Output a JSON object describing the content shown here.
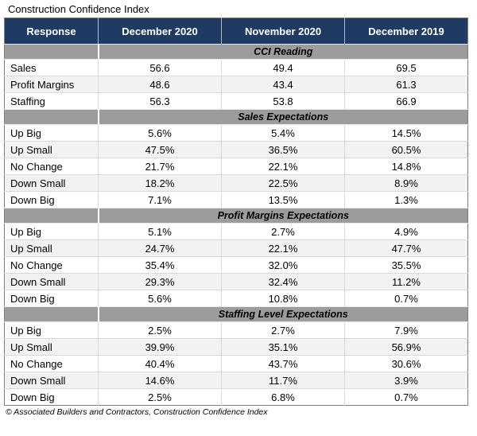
{
  "title": "Construction Confidence Index",
  "footer": "© Associated Builders and Contractors, Construction Confidence Index",
  "colors": {
    "header_bg": "#1f3a63",
    "section_bg": "#9c9c9c",
    "stripe_bg": "#f2f2f2",
    "grid": "#d9d9d9"
  },
  "chart_data": {
    "type": "table",
    "title": "Construction Confidence Index",
    "columns": [
      "Response",
      "December 2020",
      "November 2020",
      "December 2019"
    ],
    "sections": [
      {
        "label": "CCI Reading",
        "rows": [
          {
            "response": "Sales",
            "values": [
              "56.6",
              "49.4",
              "69.5"
            ]
          },
          {
            "response": "Profit Margins",
            "values": [
              "48.6",
              "43.4",
              "61.3"
            ]
          },
          {
            "response": "Staffing",
            "values": [
              "56.3",
              "53.8",
              "66.9"
            ]
          }
        ]
      },
      {
        "label": "Sales Expectations",
        "rows": [
          {
            "response": "Up Big",
            "values": [
              "5.6%",
              "5.4%",
              "14.5%"
            ]
          },
          {
            "response": "Up Small",
            "values": [
              "47.5%",
              "36.5%",
              "60.5%"
            ]
          },
          {
            "response": "No Change",
            "values": [
              "21.7%",
              "22.1%",
              "14.8%"
            ]
          },
          {
            "response": "Down Small",
            "values": [
              "18.2%",
              "22.5%",
              "8.9%"
            ]
          },
          {
            "response": "Down Big",
            "values": [
              "7.1%",
              "13.5%",
              "1.3%"
            ]
          }
        ]
      },
      {
        "label": "Profit Margins Expectations",
        "rows": [
          {
            "response": "Up Big",
            "values": [
              "5.1%",
              "2.7%",
              "4.9%"
            ]
          },
          {
            "response": "Up Small",
            "values": [
              "24.7%",
              "22.1%",
              "47.7%"
            ]
          },
          {
            "response": "No Change",
            "values": [
              "35.4%",
              "32.0%",
              "35.5%"
            ]
          },
          {
            "response": "Down Small",
            "values": [
              "29.3%",
              "32.4%",
              "11.2%"
            ]
          },
          {
            "response": "Down Big",
            "values": [
              "5.6%",
              "10.8%",
              "0.7%"
            ]
          }
        ]
      },
      {
        "label": "Staffing Level Expectations",
        "rows": [
          {
            "response": "Up Big",
            "values": [
              "2.5%",
              "2.7%",
              "7.9%"
            ]
          },
          {
            "response": "Up Small",
            "values": [
              "39.9%",
              "35.1%",
              "56.9%"
            ]
          },
          {
            "response": "No Change",
            "values": [
              "40.4%",
              "43.7%",
              "30.6%"
            ]
          },
          {
            "response": "Down Small",
            "values": [
              "14.6%",
              "11.7%",
              "3.9%"
            ]
          },
          {
            "response": "Down Big",
            "values": [
              "2.5%",
              "6.8%",
              "0.7%"
            ]
          }
        ]
      }
    ]
  }
}
